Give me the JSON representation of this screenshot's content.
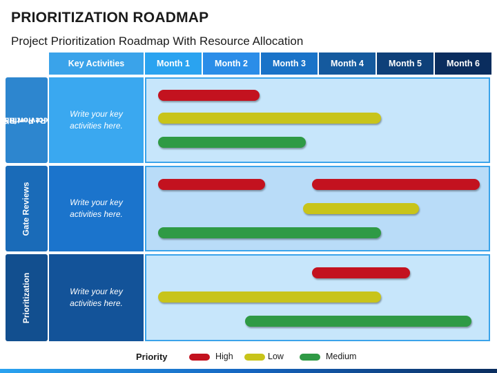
{
  "title": "PRIORITIZATION ROADMAP",
  "subtitle": "Project Prioritization Roadmap With Resource Allocation",
  "headers": {
    "key_activities": "Key Activities",
    "months": [
      "Month 1",
      "Month 2",
      "Month 3",
      "Month 4",
      "Month 5",
      "Month 6"
    ]
  },
  "rows": [
    {
      "label_lines": [
        "Review R&D",
        "Project Portfolio"
      ],
      "activity_lines": [
        "Write your key",
        "activities here."
      ],
      "bars": [
        {
          "priority": "High",
          "start_month": 0.25,
          "end_month": 2.0
        },
        {
          "priority": "Low",
          "start_month": 0.25,
          "end_month": 4.1
        },
        {
          "priority": "Medium",
          "start_month": 0.25,
          "end_month": 2.8
        }
      ]
    },
    {
      "label_lines": [
        "Gate Reviews"
      ],
      "activity_lines": [
        "Write your key",
        "activities here."
      ],
      "bars": [
        {
          "priority": "High",
          "start_month": 0.25,
          "end_month": 2.1
        },
        {
          "priority": "High",
          "start_month": 2.9,
          "end_month": 5.8
        },
        {
          "priority": "Low",
          "start_month": 2.75,
          "end_month": 4.75
        },
        {
          "priority": "Medium",
          "start_month": 0.25,
          "end_month": 4.1
        }
      ]
    },
    {
      "label_lines": [
        "Prioritization"
      ],
      "activity_lines": [
        "Write your key",
        "activities here."
      ],
      "bars": [
        {
          "priority": "High",
          "start_month": 2.9,
          "end_month": 4.6
        },
        {
          "priority": "Low",
          "start_month": 0.25,
          "end_month": 4.1
        },
        {
          "priority": "Medium",
          "start_month": 1.75,
          "end_month": 5.65
        }
      ]
    }
  ],
  "legend": {
    "title": "Priority",
    "items": [
      {
        "label": "High",
        "color": "#c3121f"
      },
      {
        "label": "Low",
        "color": "#c8c41a"
      },
      {
        "label": "Medium",
        "color": "#2f9a45"
      }
    ]
  },
  "colors": {
    "key_activities_header": "#3aa3ea",
    "month_headers": [
      "#2aa3f0",
      "#2b8de8",
      "#1a73c8",
      "#155a9e",
      "#0e4079",
      "#0a2d5e"
    ],
    "row_labels": [
      "#2d86cf",
      "#1a6bb8",
      "#124f8f"
    ],
    "activities": [
      "#3aa8f0",
      "#1b74cc",
      "#135399"
    ]
  }
}
